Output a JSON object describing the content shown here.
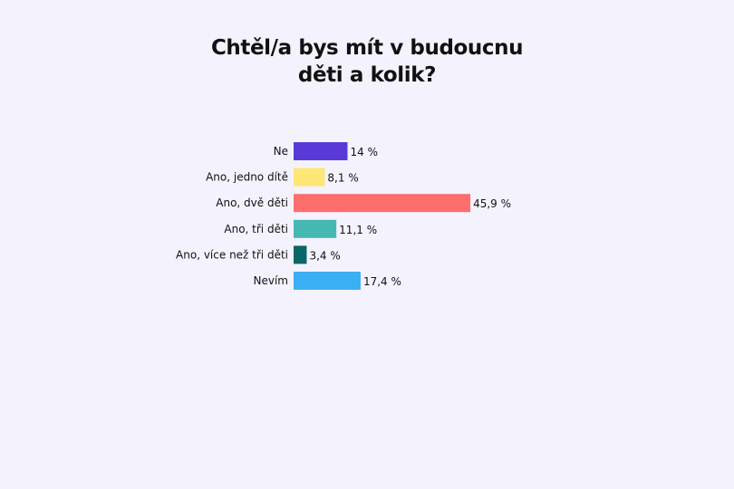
{
  "chart_data": {
    "type": "bar",
    "orientation": "horizontal",
    "title_lines": [
      "Chtěl/a bys mít v budoucnu",
      "děti a kolik?"
    ],
    "categories": [
      "Ne",
      "Ano, jedno dítě",
      "Ano, dvě děti",
      "Ano, tři děti",
      "Ano, více než tři děti",
      "Nevím"
    ],
    "values": [
      14,
      8.1,
      45.9,
      11.1,
      3.4,
      17.4
    ],
    "value_labels": [
      "14 %",
      "8,1 %",
      "45,9 %",
      "11,1 %",
      "3,4 %",
      "17,4 %"
    ],
    "colors": [
      "#5a3ad6",
      "#fde776",
      "#fd6e6c",
      "#46b8b4",
      "#0b6666",
      "#3aaff1"
    ],
    "unit": "%",
    "grid": false,
    "legend": "none",
    "background": "#f4f2fd"
  }
}
